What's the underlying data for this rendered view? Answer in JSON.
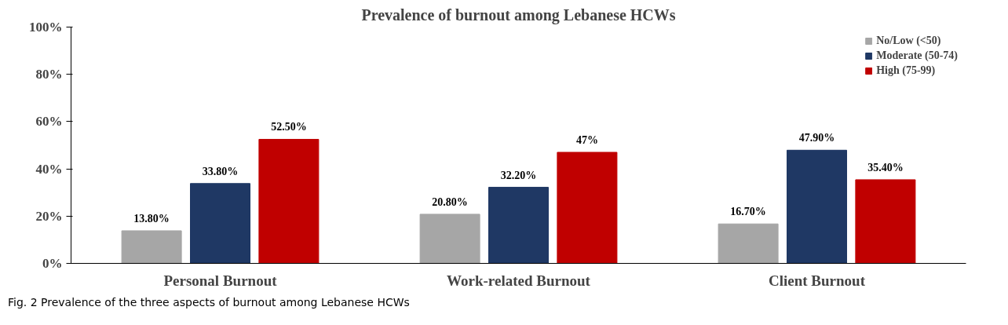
{
  "chart_data": {
    "type": "bar",
    "title": "Prevalence of burnout among Lebanese HCWs",
    "categories": [
      "Personal Burnout",
      "Work-related Burnout",
      "Client Burnout"
    ],
    "series": [
      {
        "name": "No/Low (<50)",
        "color": "#a6a6a6",
        "values": [
          13.8,
          20.8,
          16.7
        ],
        "value_labels": [
          "13.80%",
          "20.80%",
          "16.70%"
        ]
      },
      {
        "name": "Moderate (50-74)",
        "color": "#1f3864",
        "values": [
          33.8,
          32.2,
          47.9
        ],
        "value_labels": [
          "33.80%",
          "32.20%",
          "47.90%"
        ]
      },
      {
        "name": "High (75-99)",
        "color": "#c00000",
        "values": [
          52.5,
          47,
          35.4
        ],
        "value_labels": [
          "52.50%",
          "47%",
          "35.40%"
        ]
      }
    ],
    "ylim": [
      0,
      100
    ],
    "yticks": [
      {
        "value": 0,
        "label": "0%"
      },
      {
        "value": 20,
        "label": "20%"
      },
      {
        "value": 40,
        "label": "40%"
      },
      {
        "value": 60,
        "label": "60%"
      },
      {
        "value": 80,
        "label": "80%"
      },
      {
        "value": 100,
        "label": "100%"
      }
    ],
    "grid": false,
    "legend": "top right",
    "annotations": [
      "Fig. 2 Prevalence of the three aspects of burnout among Lebanese HCWs"
    ]
  }
}
